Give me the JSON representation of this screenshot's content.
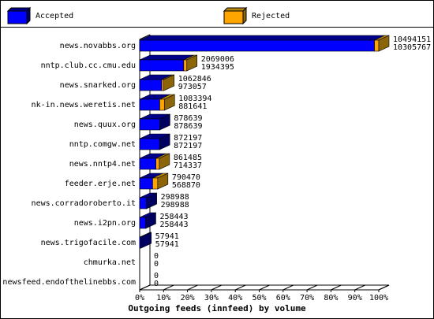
{
  "chart_data": {
    "type": "bar",
    "orientation": "horizontal",
    "stacked": true,
    "title": "Outgoing feeds (innfeed) by volume",
    "categories": [
      "news.novabbs.org",
      "nntp.club.cc.cmu.edu",
      "news.snarked.org",
      "nk-in.news.weretis.net",
      "news.quux.org",
      "nntp.comgw.net",
      "news.nntp4.net",
      "feeder.erje.net",
      "news.corradoroberto.it",
      "news.i2pn.org",
      "news.trigofacile.com",
      "chmurka.net",
      "newsfeed.endofthelinebbs.com"
    ],
    "series": [
      {
        "name": "Accepted",
        "color": "#0000ff",
        "values": [
          10305767,
          1934395,
          973057,
          881641,
          878639,
          872197,
          714337,
          568870,
          298988,
          258443,
          57941,
          0,
          0
        ]
      },
      {
        "name": "Rejected",
        "color": "#ffa500",
        "values": [
          188384,
          134611,
          89789,
          201753,
          0,
          0,
          147148,
          221600,
          0,
          0,
          0,
          0,
          0
        ]
      }
    ],
    "totals": [
      10494151,
      2069006,
      1062846,
      1083394,
      878639,
      872197,
      861485,
      790470,
      298988,
      258443,
      57941,
      0,
      0
    ],
    "xlim": [
      0,
      10494151
    ],
    "xticks": [
      {
        "value": 0,
        "label": "0%"
      },
      {
        "value": 1049415.1,
        "label": "10%"
      },
      {
        "value": 2098830.2,
        "label": "20%"
      },
      {
        "value": 3148245.3,
        "label": "30%"
      },
      {
        "value": 4197660.4,
        "label": "40%"
      },
      {
        "value": 5247075.5,
        "label": "50%"
      },
      {
        "value": 6296490.6,
        "label": "60%"
      },
      {
        "value": 7345905.7,
        "label": "70%"
      },
      {
        "value": 8395320.8,
        "label": "80%"
      },
      {
        "value": 9444735.9,
        "label": "90%"
      },
      {
        "value": 10494151,
        "label": "100%"
      }
    ]
  }
}
